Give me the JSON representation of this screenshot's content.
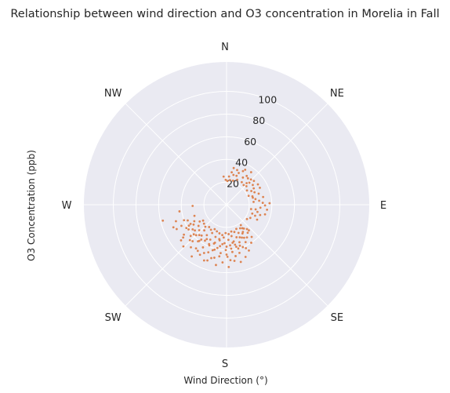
{
  "chart_data": {
    "type": "scatter",
    "projection": "polar",
    "title": "Relationship between wind direction and O3 concentration in Morelia in Fall",
    "xlabel": "Wind Direction (°)",
    "ylabel": "O3 Concentration (ppb)",
    "theta_labels": [
      "N",
      "NE",
      "E",
      "SE",
      "S",
      "SW",
      "W",
      "NW"
    ],
    "theta_angles_deg": [
      0,
      45,
      90,
      135,
      180,
      225,
      270,
      315
    ],
    "r_ticks": [
      20,
      40,
      60,
      80,
      100
    ],
    "r_max": 126,
    "grid": true,
    "marker_color": "#dd8452",
    "background_color": "#eaeaf2",
    "points": [
      {
        "dir": 5,
        "o3": 25
      },
      {
        "dir": 9,
        "o3": 29
      },
      {
        "dir": 13,
        "o3": 27
      },
      {
        "dir": 17,
        "o3": 32
      },
      {
        "dir": 21,
        "o3": 30
      },
      {
        "dir": 26,
        "o3": 33
      },
      {
        "dir": 31,
        "o3": 28
      },
      {
        "dir": 35,
        "o3": 31
      },
      {
        "dir": 39,
        "o3": 30
      },
      {
        "dir": 43,
        "o3": 26
      },
      {
        "dir": 46,
        "o3": 28
      },
      {
        "dir": 49,
        "o3": 32
      },
      {
        "dir": 53,
        "o3": 29
      },
      {
        "dir": 57,
        "o3": 33
      },
      {
        "dir": 61,
        "o3": 25
      },
      {
        "dir": 66,
        "o3": 27
      },
      {
        "dir": 71,
        "o3": 30
      },
      {
        "dir": 75,
        "o3": 24
      },
      {
        "dir": 79,
        "o3": 26
      },
      {
        "dir": 83,
        "o3": 29
      },
      {
        "dir": 87,
        "o3": 32
      },
      {
        "dir": 91,
        "o3": 34
      },
      {
        "dir": 95,
        "o3": 30
      },
      {
        "dir": 99,
        "o3": 26
      },
      {
        "dir": 103,
        "o3": 28
      },
      {
        "dir": 107,
        "o3": 31
      },
      {
        "dir": 111,
        "o3": 27
      },
      {
        "dir": 116,
        "o3": 30
      },
      {
        "dir": 8,
        "o3": 22
      },
      {
        "dir": 15,
        "o3": 22
      },
      {
        "dir": 23,
        "o3": 24
      },
      {
        "dir": 34,
        "o3": 24
      },
      {
        "dir": 41,
        "o3": 23
      },
      {
        "dir": 55,
        "o3": 22
      },
      {
        "dir": 68,
        "o3": 21
      },
      {
        "dir": 78,
        "o3": 33
      },
      {
        "dir": 88,
        "o3": 38
      },
      {
        "dir": 97,
        "o3": 36
      },
      {
        "dir": 104,
        "o3": 35
      },
      {
        "dir": 2,
        "o3": 21
      },
      {
        "dir": -2,
        "o3": 22
      },
      {
        "dir": -6,
        "o3": 25
      },
      {
        "dir": 28,
        "o3": 35
      },
      {
        "dir": 37,
        "o3": 36
      },
      {
        "dir": 47,
        "o3": 24
      },
      {
        "dir": 59,
        "o3": 28
      },
      {
        "dir": 63,
        "o3": 33
      },
      {
        "dir": 72,
        "o3": 24
      },
      {
        "dir": 84,
        "o3": 24
      },
      {
        "dir": 100,
        "o3": 22
      },
      {
        "dir": 109,
        "o3": 24
      },
      {
        "dir": 119,
        "o3": 24
      },
      {
        "dir": 125,
        "o3": 22
      },
      {
        "dir": 44,
        "o3": 31
      },
      {
        "dir": 19,
        "o3": 27
      },
      {
        "dir": 11,
        "o3": 33
      },
      {
        "dir": 140,
        "o3": 28
      },
      {
        "dir": 143,
        "o3": 31
      },
      {
        "dir": 146,
        "o3": 25
      },
      {
        "dir": 148,
        "o3": 34
      },
      {
        "dir": 151,
        "o3": 29
      },
      {
        "dir": 153,
        "o3": 37
      },
      {
        "dir": 155,
        "o3": 32
      },
      {
        "dir": 157,
        "o3": 27
      },
      {
        "dir": 159,
        "o3": 40
      },
      {
        "dir": 161,
        "o3": 35
      },
      {
        "dir": 163,
        "o3": 30
      },
      {
        "dir": 165,
        "o3": 44
      },
      {
        "dir": 167,
        "o3": 38
      },
      {
        "dir": 169,
        "o3": 33
      },
      {
        "dir": 171,
        "o3": 28
      },
      {
        "dir": 173,
        "o3": 42
      },
      {
        "dir": 175,
        "o3": 36
      },
      {
        "dir": 177,
        "o3": 31
      },
      {
        "dir": 179,
        "o3": 46
      },
      {
        "dir": 181,
        "o3": 40
      },
      {
        "dir": 183,
        "o3": 34
      },
      {
        "dir": 185,
        "o3": 29
      },
      {
        "dir": 187,
        "o3": 43
      },
      {
        "dir": 189,
        "o3": 37
      },
      {
        "dir": 191,
        "o3": 32
      },
      {
        "dir": 193,
        "o3": 48
      },
      {
        "dir": 195,
        "o3": 41
      },
      {
        "dir": 197,
        "o3": 35
      },
      {
        "dir": 199,
        "o3": 30
      },
      {
        "dir": 201,
        "o3": 45
      },
      {
        "dir": 203,
        "o3": 39
      },
      {
        "dir": 205,
        "o3": 34
      },
      {
        "dir": 207,
        "o3": 28
      },
      {
        "dir": 209,
        "o3": 43
      },
      {
        "dir": 211,
        "o3": 37
      },
      {
        "dir": 213,
        "o3": 32
      },
      {
        "dir": 215,
        "o3": 47
      },
      {
        "dir": 217,
        "o3": 40
      },
      {
        "dir": 219,
        "o3": 35
      },
      {
        "dir": 221,
        "o3": 30
      },
      {
        "dir": 223,
        "o3": 44
      },
      {
        "dir": 225,
        "o3": 38
      },
      {
        "dir": 227,
        "o3": 33
      },
      {
        "dir": 229,
        "o3": 42
      },
      {
        "dir": 231,
        "o3": 36
      },
      {
        "dir": 233,
        "o3": 31
      },
      {
        "dir": 235,
        "o3": 46
      },
      {
        "dir": 237,
        "o3": 40
      },
      {
        "dir": 239,
        "o3": 34
      },
      {
        "dir": 241,
        "o3": 38
      },
      {
        "dir": 243,
        "o3": 32
      },
      {
        "dir": 245,
        "o3": 44
      },
      {
        "dir": 248,
        "o3": 37
      },
      {
        "dir": 251,
        "o3": 30
      },
      {
        "dir": 154,
        "o3": 45
      },
      {
        "dir": 160,
        "o3": 49
      },
      {
        "dir": 166,
        "o3": 52
      },
      {
        "dir": 172,
        "o3": 50
      },
      {
        "dir": 178,
        "o3": 55
      },
      {
        "dir": 184,
        "o3": 51
      },
      {
        "dir": 190,
        "o3": 54
      },
      {
        "dir": 196,
        "o3": 49
      },
      {
        "dir": 202,
        "o3": 53
      },
      {
        "dir": 208,
        "o3": 50
      },
      {
        "dir": 214,
        "o3": 55
      },
      {
        "dir": 220,
        "o3": 49
      },
      {
        "dir": 226,
        "o3": 53
      },
      {
        "dir": 232,
        "o3": 51
      },
      {
        "dir": 247,
        "o3": 51
      },
      {
        "dir": 252,
        "o3": 47
      },
      {
        "dir": 256,
        "o3": 58
      },
      {
        "dir": 262,
        "o3": 42
      },
      {
        "dir": 268,
        "o3": 30
      },
      {
        "dir": 145,
        "o3": 22
      },
      {
        "dir": 150,
        "o3": 24
      },
      {
        "dir": 158,
        "o3": 23
      },
      {
        "dir": 164,
        "o3": 25
      },
      {
        "dir": 170,
        "o3": 24
      },
      {
        "dir": 176,
        "o3": 26
      },
      {
        "dir": 182,
        "o3": 25
      },
      {
        "dir": 188,
        "o3": 27
      },
      {
        "dir": 194,
        "o3": 26
      },
      {
        "dir": 200,
        "o3": 25
      },
      {
        "dir": 206,
        "o3": 24
      },
      {
        "dir": 212,
        "o3": 26
      },
      {
        "dir": 218,
        "o3": 25
      },
      {
        "dir": 224,
        "o3": 27
      },
      {
        "dir": 230,
        "o3": 26
      },
      {
        "dir": 236,
        "o3": 25
      },
      {
        "dir": 142,
        "o3": 36
      },
      {
        "dir": 147,
        "o3": 40
      },
      {
        "dir": 152,
        "o3": 33
      },
      {
        "dir": 156,
        "o3": 42
      },
      {
        "dir": 162,
        "o3": 38
      },
      {
        "dir": 168,
        "o3": 36
      },
      {
        "dir": 174,
        "o3": 39
      },
      {
        "dir": 180,
        "o3": 37
      },
      {
        "dir": 186,
        "o3": 35
      },
      {
        "dir": 192,
        "o3": 39
      },
      {
        "dir": 198,
        "o3": 36
      },
      {
        "dir": 204,
        "o3": 38
      },
      {
        "dir": 210,
        "o3": 35
      },
      {
        "dir": 216,
        "o3": 38
      },
      {
        "dir": 222,
        "o3": 36
      },
      {
        "dir": 228,
        "o3": 39
      },
      {
        "dir": 234,
        "o3": 37
      },
      {
        "dir": 240,
        "o3": 41
      },
      {
        "dir": 139,
        "o3": 30
      },
      {
        "dir": 144,
        "o3": 26
      },
      {
        "dir": 149,
        "o3": 28
      },
      {
        "dir": 171,
        "o3": 34
      },
      {
        "dir": 197,
        "o3": 42
      },
      {
        "dir": 218,
        "o3": 41
      },
      {
        "dir": 242,
        "o3": 36
      },
      {
        "dir": 205,
        "o3": 47
      },
      {
        "dir": 188,
        "o3": 46
      },
      {
        "dir": 165,
        "o3": 40
      },
      {
        "dir": 158,
        "o3": 31
      },
      {
        "dir": 233,
        "o3": 48
      },
      {
        "dir": 176,
        "o3": 49
      },
      {
        "dir": 199,
        "o3": 52
      },
      {
        "dir": 212,
        "o3": 48
      },
      {
        "dir": 226,
        "o3": 45
      },
      {
        "dir": 244,
        "o3": 49
      },
      {
        "dir": 238,
        "o3": 28
      },
      {
        "dir": 250,
        "o3": 40
      },
      {
        "dir": 192,
        "o3": 31
      },
      {
        "dir": 180,
        "o3": 44
      },
      {
        "dir": 170,
        "o3": 46
      }
    ]
  }
}
